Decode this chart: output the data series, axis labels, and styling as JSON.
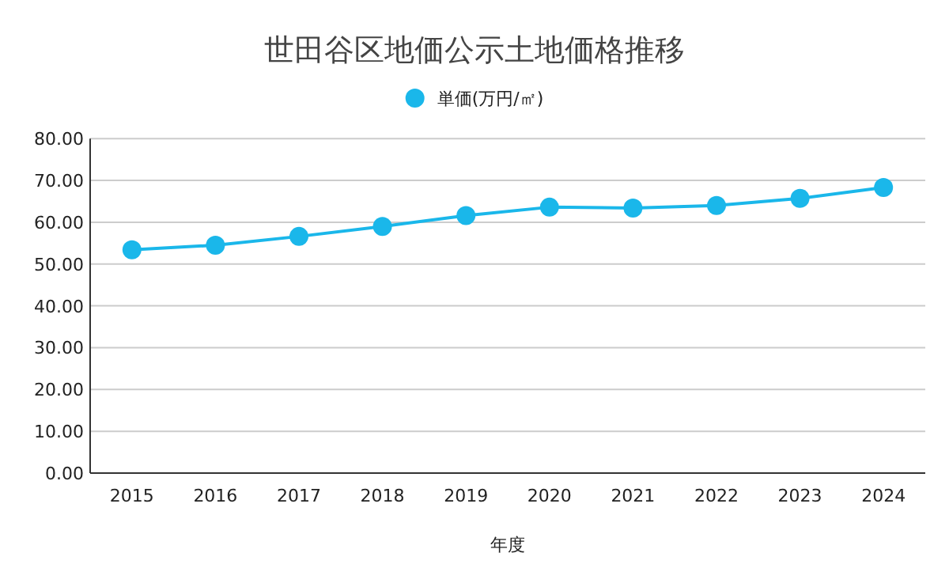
{
  "chart_data": {
    "type": "line",
    "title": "世田谷区地価公示土地価格推移",
    "xlabel": "年度",
    "categories": [
      "2015",
      "2016",
      "2017",
      "2018",
      "2019",
      "2020",
      "2021",
      "2022",
      "2023",
      "2024"
    ],
    "series": [
      {
        "name": "単価(万円/㎡)",
        "color": "#1ab7ea",
        "values": [
          53.4,
          54.5,
          56.6,
          59.0,
          61.6,
          63.6,
          63.4,
          64.0,
          65.7,
          68.3
        ]
      }
    ],
    "ylim": [
      0,
      80
    ],
    "yticks": [
      {
        "value": 0,
        "label": "0.00"
      },
      {
        "value": 10,
        "label": "10.00"
      },
      {
        "value": 20,
        "label": "20.00"
      },
      {
        "value": 30,
        "label": "30.00"
      },
      {
        "value": 40,
        "label": "40.00"
      },
      {
        "value": 50,
        "label": "50.00"
      },
      {
        "value": 60,
        "label": "60.00"
      },
      {
        "value": 70,
        "label": "70.00"
      },
      {
        "value": 80,
        "label": "80.00"
      }
    ],
    "grid": "y",
    "legend": "top",
    "marker": "circle",
    "line_style": "solid"
  }
}
